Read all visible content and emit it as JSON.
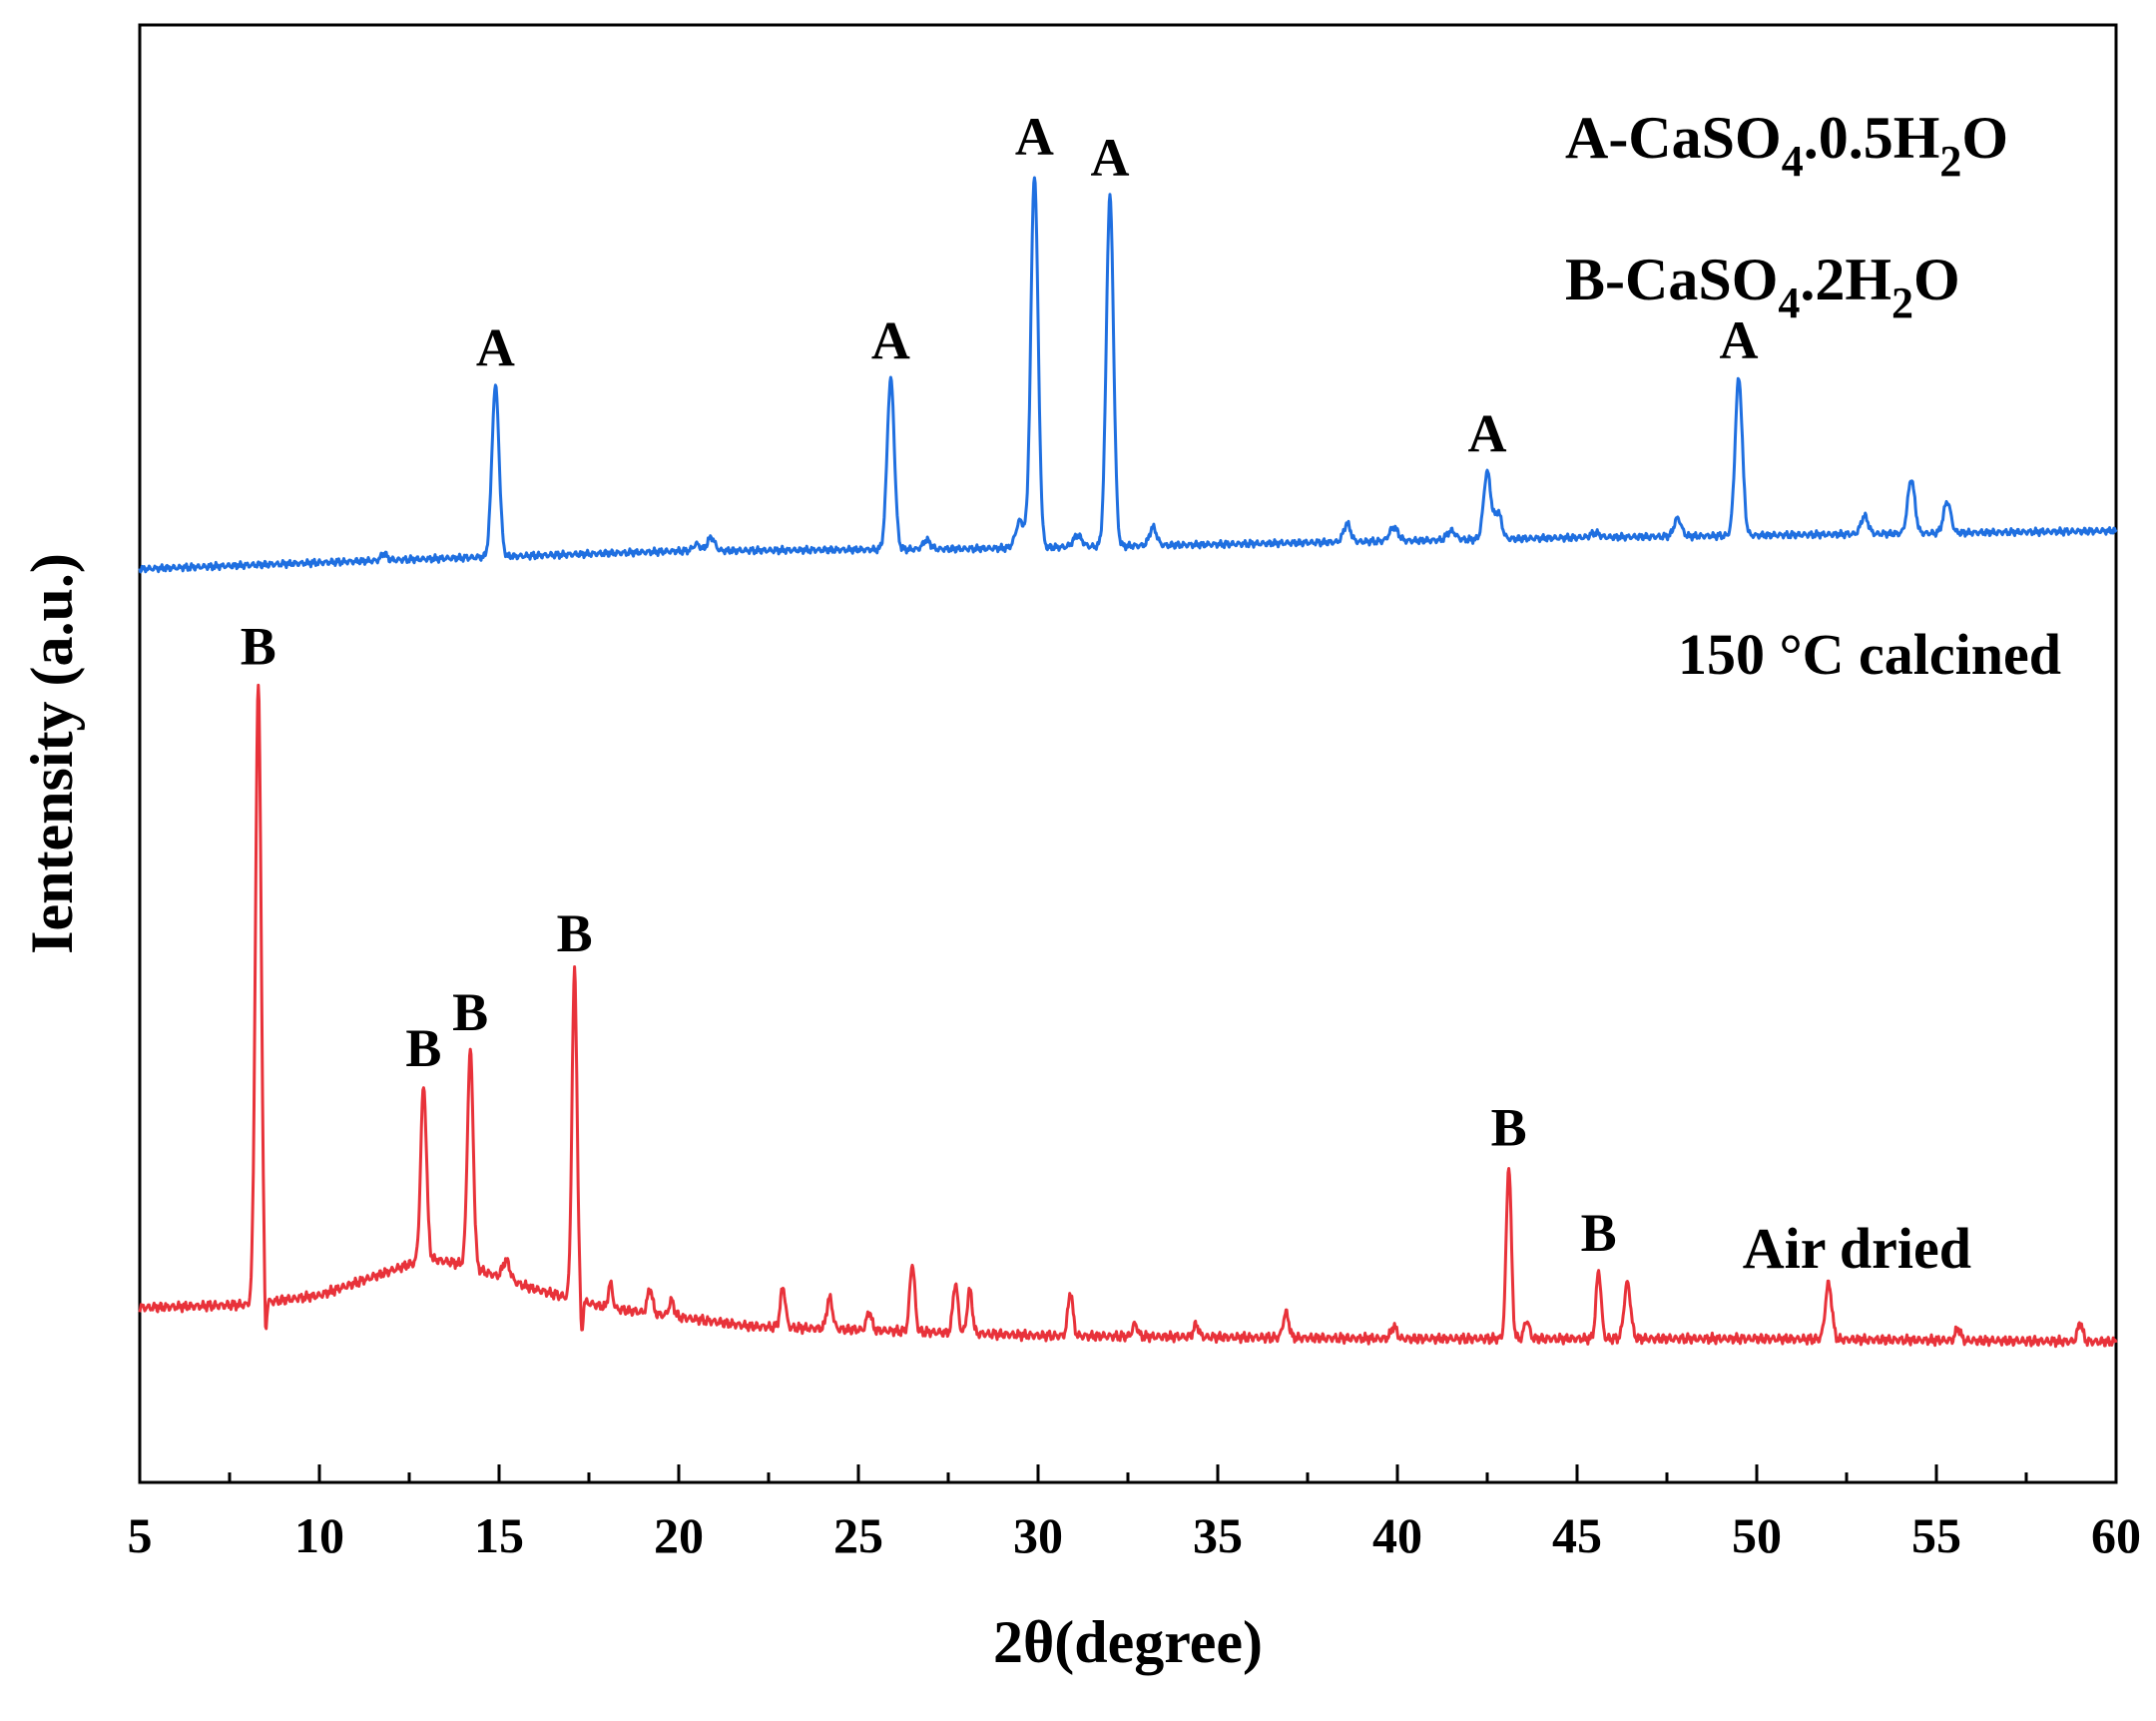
{
  "chart_data": {
    "type": "line",
    "xlabel": "2θ(degree)",
    "ylabel": "Ientensity (a.u.)",
    "xlim": [
      5,
      60
    ],
    "xticks": [
      "5",
      "10",
      "15",
      "20",
      "25",
      "30",
      "35",
      "40",
      "45",
      "50",
      "55",
      "60"
    ],
    "legend": {
      "line1": {
        "prefix": "A-CaSO",
        "sub1": "4",
        "mid": ".0.5H",
        "sub2": "2",
        "suffix": "O"
      },
      "line2": {
        "prefix": "B-CaSO",
        "sub1": "4",
        "mid": ".2H",
        "sub2": "2",
        "suffix": "O"
      }
    },
    "series": [
      {
        "name": "150 °C calcined",
        "color": "#1f6fe0",
        "baseline": [
          [
            5,
            0.0
          ],
          [
            12,
            0.02
          ],
          [
            20,
            0.04
          ],
          [
            28,
            0.045
          ],
          [
            35,
            0.055
          ],
          [
            45,
            0.07
          ],
          [
            55,
            0.08
          ],
          [
            60,
            0.085
          ]
        ],
        "peaks": [
          [
            11.8,
            0.015,
            0.08
          ],
          [
            14.9,
            0.38,
            0.1
          ],
          [
            20.5,
            0.015,
            0.1
          ],
          [
            20.9,
            0.03,
            0.1
          ],
          [
            25.9,
            0.38,
            0.1
          ],
          [
            26.9,
            0.02,
            0.1
          ],
          [
            29.5,
            0.06,
            0.12
          ],
          [
            29.9,
            0.83,
            0.1
          ],
          [
            31.1,
            0.025,
            0.12
          ],
          [
            32.0,
            0.78,
            0.1
          ],
          [
            33.2,
            0.04,
            0.1
          ],
          [
            38.6,
            0.04,
            0.1
          ],
          [
            39.9,
            0.03,
            0.12
          ],
          [
            41.5,
            0.02,
            0.12
          ],
          [
            42.5,
            0.15,
            0.1
          ],
          [
            42.8,
            0.06,
            0.1
          ],
          [
            45.5,
            0.01,
            0.12
          ],
          [
            47.8,
            0.04,
            0.1
          ],
          [
            49.5,
            0.35,
            0.1
          ],
          [
            53.0,
            0.04,
            0.1
          ],
          [
            54.3,
            0.12,
            0.1
          ],
          [
            55.3,
            0.07,
            0.1
          ]
        ],
        "annotations": [
          {
            "x": 14.9,
            "label": "A"
          },
          {
            "x": 25.9,
            "label": "A"
          },
          {
            "x": 29.9,
            "label": "A"
          },
          {
            "x": 32.0,
            "label": "A"
          },
          {
            "x": 42.5,
            "label": "A"
          },
          {
            "x": 49.5,
            "label": "A"
          }
        ]
      },
      {
        "name": "Air dried",
        "color": "#e8323a",
        "baseline": [
          [
            5,
            0.0
          ],
          [
            8,
            0.005
          ],
          [
            10,
            0.02
          ],
          [
            12,
            0.06
          ],
          [
            13,
            0.08
          ],
          [
            14,
            0.07
          ],
          [
            16,
            0.03
          ],
          [
            18,
            0.0
          ],
          [
            22,
            -0.03
          ],
          [
            30,
            -0.045
          ],
          [
            40,
            -0.05
          ],
          [
            50,
            -0.05
          ],
          [
            60,
            -0.055
          ]
        ],
        "peaks": [
          [
            8.3,
            1.0,
            0.08
          ],
          [
            8.5,
            -0.08,
            0.03
          ],
          [
            12.9,
            0.28,
            0.08
          ],
          [
            14.2,
            0.35,
            0.08
          ],
          [
            15.2,
            0.03,
            0.1
          ],
          [
            17.1,
            0.53,
            0.07
          ],
          [
            17.3,
            -0.06,
            0.03
          ],
          [
            18.1,
            0.04,
            0.06
          ],
          [
            19.2,
            0.04,
            0.07
          ],
          [
            19.8,
            0.025,
            0.07
          ],
          [
            22.9,
            0.065,
            0.07
          ],
          [
            24.2,
            0.05,
            0.08
          ],
          [
            25.3,
            0.03,
            0.07
          ],
          [
            26.5,
            0.11,
            0.07
          ],
          [
            27.7,
            0.08,
            0.07
          ],
          [
            28.1,
            0.07,
            0.07
          ],
          [
            30.9,
            0.07,
            0.07
          ],
          [
            32.7,
            0.02,
            0.07
          ],
          [
            34.4,
            0.02,
            0.07
          ],
          [
            36.9,
            0.04,
            0.08
          ],
          [
            39.9,
            0.02,
            0.08
          ],
          [
            43.1,
            0.28,
            0.07
          ],
          [
            43.6,
            0.03,
            0.07
          ],
          [
            45.6,
            0.11,
            0.07
          ],
          [
            46.4,
            0.09,
            0.09
          ],
          [
            52.0,
            0.09,
            0.09
          ],
          [
            55.6,
            0.02,
            0.07
          ],
          [
            59.0,
            0.03,
            0.07
          ]
        ],
        "annotations": [
          {
            "x": 8.3,
            "label": "B"
          },
          {
            "x": 12.9,
            "label": "B"
          },
          {
            "x": 14.2,
            "label": "B"
          },
          {
            "x": 17.1,
            "label": "B"
          },
          {
            "x": 43.1,
            "label": "B"
          },
          {
            "x": 45.6,
            "label": "B"
          }
        ]
      }
    ]
  }
}
